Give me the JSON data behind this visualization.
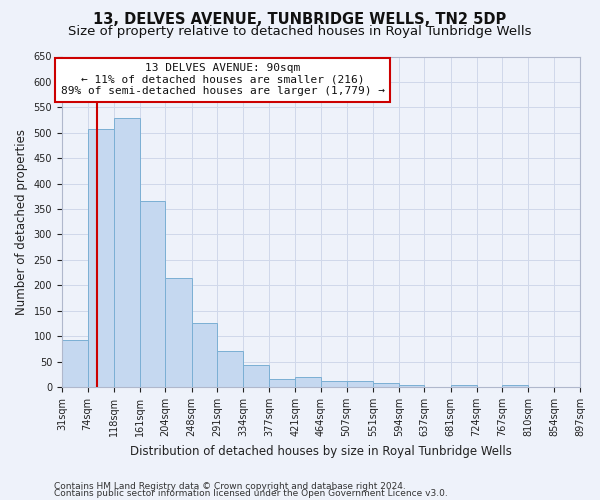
{
  "title": "13, DELVES AVENUE, TUNBRIDGE WELLS, TN2 5DP",
  "subtitle": "Size of property relative to detached houses in Royal Tunbridge Wells",
  "xlabel": "Distribution of detached houses by size in Royal Tunbridge Wells",
  "ylabel": "Number of detached properties",
  "bar_values": [
    93,
    507,
    530,
    365,
    215,
    125,
    70,
    43,
    15,
    19,
    11,
    11,
    8,
    5,
    0,
    5,
    0,
    5,
    0,
    0
  ],
  "bin_edges": [
    31,
    74,
    118,
    161,
    204,
    248,
    291,
    334,
    377,
    421,
    464,
    507,
    551,
    594,
    637,
    681,
    724,
    767,
    810,
    854,
    897
  ],
  "bar_color": "#c5d8f0",
  "bar_edge_color": "#7bafd4",
  "grid_color": "#d0d8ea",
  "bg_color": "#eef2fa",
  "redline_x": 90,
  "annotation_line1": "13 DELVES AVENUE: 90sqm",
  "annotation_line2": "← 11% of detached houses are smaller (216)",
  "annotation_line3": "89% of semi-detached houses are larger (1,779) →",
  "annotation_box_color": "#ffffff",
  "annotation_border_color": "#cc0000",
  "ylim": [
    0,
    650
  ],
  "yticks": [
    0,
    50,
    100,
    150,
    200,
    250,
    300,
    350,
    400,
    450,
    500,
    550,
    600,
    650
  ],
  "footer_line1": "Contains HM Land Registry data © Crown copyright and database right 2024.",
  "footer_line2": "Contains public sector information licensed under the Open Government Licence v3.0.",
  "title_fontsize": 10.5,
  "subtitle_fontsize": 9.5,
  "axis_label_fontsize": 8.5,
  "tick_fontsize": 7,
  "annotation_fontsize": 8,
  "footer_fontsize": 6.5
}
